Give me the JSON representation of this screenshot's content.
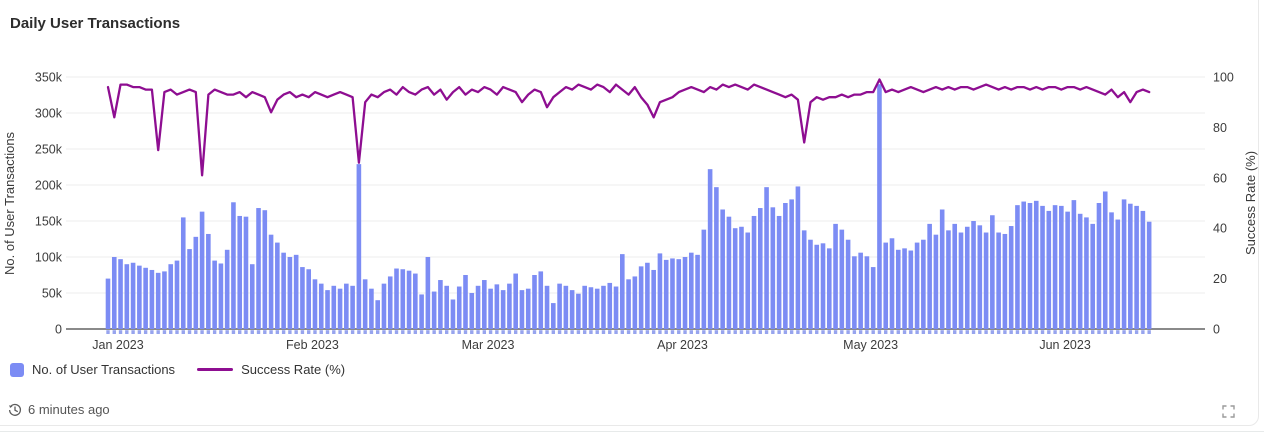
{
  "header": {
    "title": "Daily User Transactions"
  },
  "chart_data": {
    "type": "combo-bar-line",
    "title": "Daily User Transactions",
    "x_start_date": "2023-01-01",
    "x_end_date": "2023-06-16",
    "months": [
      {
        "label": "Jan 2023",
        "start_index": 0
      },
      {
        "label": "Feb 2023",
        "start_index": 31
      },
      {
        "label": "Mar 2023",
        "start_index": 59
      },
      {
        "label": "Apr 2023",
        "start_index": 90
      },
      {
        "label": "May 2023",
        "start_index": 120
      },
      {
        "label": "Jun 2023",
        "start_index": 151
      }
    ],
    "y_left": {
      "label": "No. of User Transactions",
      "min": 0,
      "max": 350000,
      "tick_step": 50000,
      "ticks": [
        "0",
        "50k",
        "100k",
        "150k",
        "200k",
        "250k",
        "300k",
        "350k"
      ]
    },
    "y_right": {
      "label": "Success Rate (%)",
      "min": 0,
      "max": 100,
      "tick_step": 20,
      "ticks": [
        "0",
        "20",
        "40",
        "60",
        "80",
        "100"
      ]
    },
    "grid": true,
    "legend_position": "bottom-left",
    "series": [
      {
        "name": "No. of User Transactions",
        "type": "bar",
        "axis": "left",
        "color": "#7c8cf4",
        "values": [
          70000,
          100000,
          97000,
          90000,
          92000,
          88000,
          85000,
          82000,
          78000,
          80000,
          90000,
          95000,
          155000,
          111000,
          128000,
          163000,
          132000,
          95000,
          91000,
          110000,
          176000,
          157000,
          156000,
          90000,
          168000,
          165000,
          131000,
          120000,
          106000,
          100000,
          103000,
          86000,
          83000,
          69000,
          63000,
          54000,
          60000,
          56000,
          63000,
          60000,
          229000,
          69000,
          56000,
          40000,
          63000,
          73000,
          84000,
          83000,
          81000,
          77000,
          48000,
          100000,
          52000,
          68000,
          60000,
          41000,
          59000,
          75000,
          50000,
          60000,
          68000,
          56000,
          62000,
          54000,
          63000,
          77000,
          54000,
          56000,
          75000,
          80000,
          60000,
          36000,
          63000,
          60000,
          54000,
          49000,
          60000,
          58000,
          56000,
          60000,
          64000,
          59000,
          104000,
          69000,
          73000,
          87000,
          92000,
          82000,
          105000,
          96000,
          98000,
          97000,
          100000,
          106000,
          103000,
          138000,
          222000,
          197000,
          166000,
          156000,
          140000,
          142000,
          134000,
          157000,
          168000,
          197000,
          169000,
          157000,
          175000,
          180000,
          198000,
          137000,
          124000,
          117000,
          119000,
          112000,
          146000,
          138000,
          124000,
          101000,
          106000,
          101000,
          86000,
          340000,
          120000,
          126000,
          110000,
          112000,
          109000,
          120000,
          124000,
          146000,
          131000,
          166000,
          137000,
          146000,
          134000,
          142000,
          150000,
          144000,
          134000,
          158000,
          134000,
          132000,
          143000,
          172000,
          177000,
          175000,
          178000,
          171000,
          164000,
          172000,
          171000,
          163000,
          179000,
          160000,
          155000,
          146000,
          175000,
          191000,
          162000,
          152000,
          180000,
          174000,
          171000,
          164000,
          149000
        ]
      },
      {
        "name": "Success Rate (%)",
        "type": "line",
        "axis": "right",
        "color": "#8e0e91",
        "values": [
          96,
          84,
          97,
          97,
          96,
          96,
          95,
          95,
          71,
          94,
          95,
          93,
          94,
          95,
          94,
          61,
          93,
          95,
          94,
          93,
          93,
          94,
          92,
          94,
          93,
          92,
          86,
          91,
          93,
          94,
          92,
          93,
          92,
          94,
          93,
          92,
          93,
          94,
          93,
          92,
          66,
          90,
          93,
          92,
          94,
          95,
          93,
          96,
          94,
          93,
          95,
          96,
          93,
          95,
          91,
          94,
          96,
          93,
          95,
          94,
          96,
          95,
          93,
          96,
          95,
          94,
          90,
          93,
          95,
          94,
          88,
          92,
          94,
          96,
          95,
          97,
          96,
          95,
          97,
          96,
          94,
          97,
          95,
          93,
          96,
          92,
          89,
          84,
          90,
          91,
          92,
          94,
          95,
          96,
          95,
          94,
          96,
          95,
          97,
          96,
          97,
          96,
          95,
          97,
          96,
          95,
          94,
          93,
          92,
          93,
          91,
          74,
          90,
          92,
          91,
          92,
          92,
          93,
          92,
          93,
          93,
          94,
          94,
          99,
          94,
          95,
          94,
          95,
          96,
          95,
          94,
          95,
          96,
          95,
          96,
          95,
          96,
          96,
          95,
          96,
          97,
          96,
          95,
          96,
          95,
          96,
          96,
          95,
          96,
          95,
          96,
          96,
          95,
          96,
          96,
          95,
          96,
          95,
          94,
          93,
          95,
          92,
          94,
          90,
          94,
          95,
          94
        ]
      }
    ]
  },
  "legend": {
    "items": [
      {
        "label": "No. of User Transactions",
        "marker": "square",
        "color": "#7c8cf4"
      },
      {
        "label": "Success Rate (%)",
        "marker": "line",
        "color": "#8e0e91"
      }
    ]
  },
  "footer": {
    "updated": "6 minutes ago"
  },
  "colors": {
    "bar": "#7c8cf4",
    "line": "#8e0e91",
    "grid": "#ededed",
    "axis_line": "#454545",
    "tick_text": "#3c3c3c",
    "muted_text": "#555555",
    "panel_border": "#e9e9e9"
  }
}
